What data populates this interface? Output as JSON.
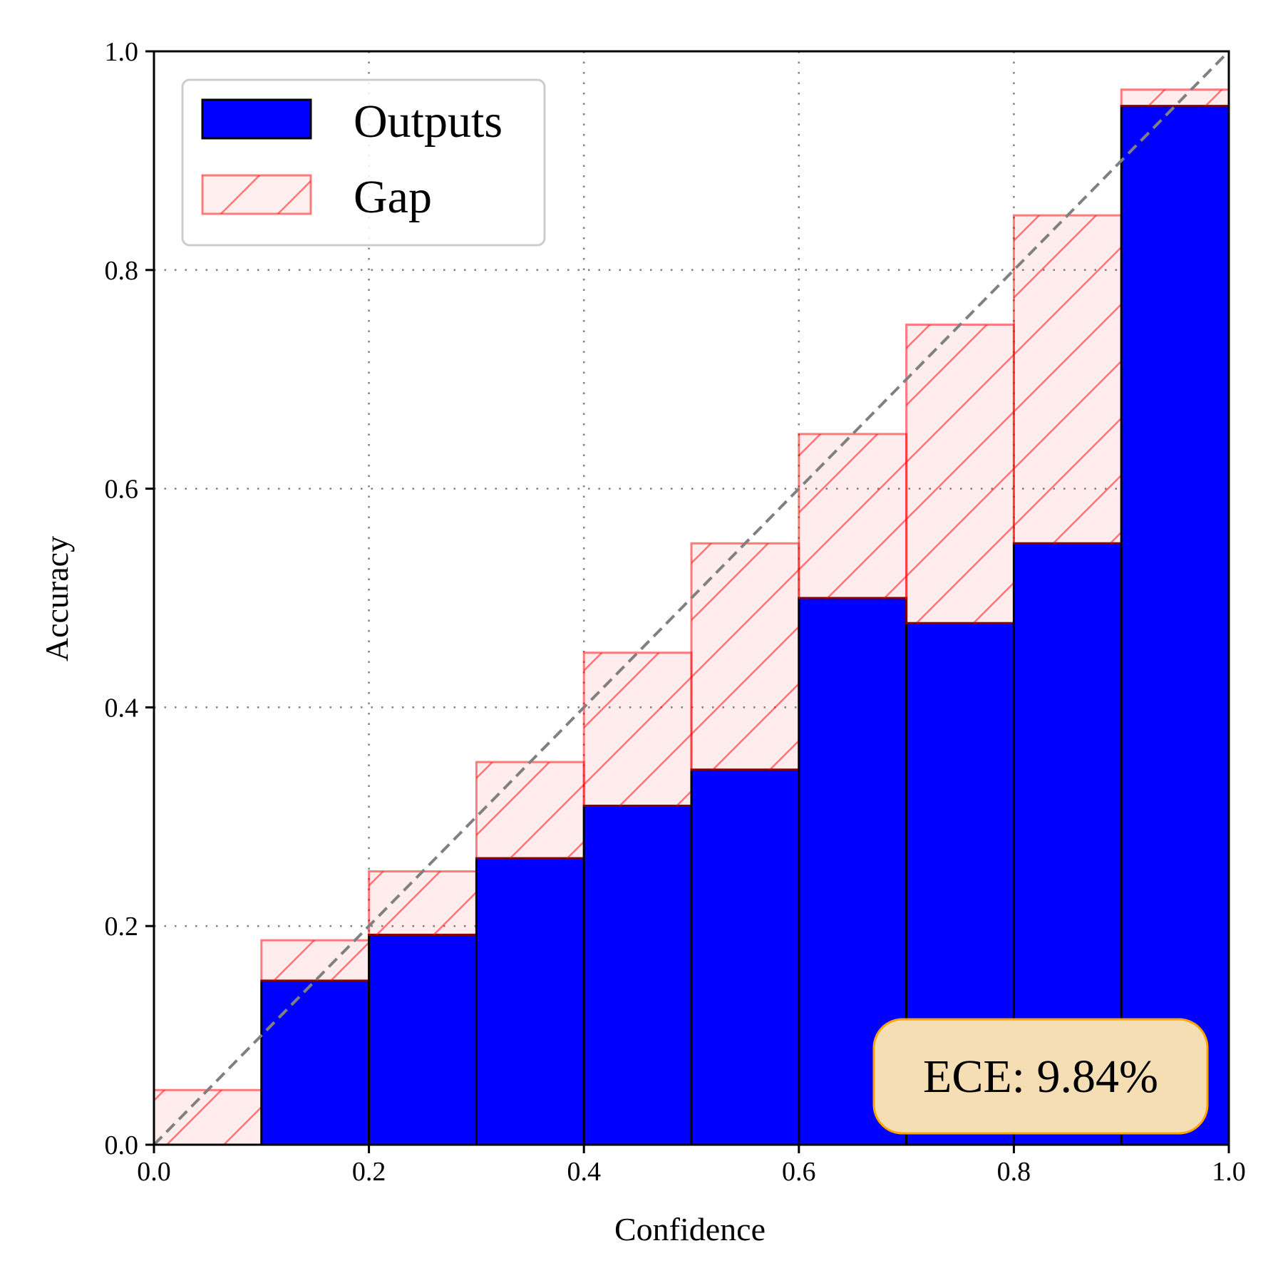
{
  "chart_data": {
    "type": "bar",
    "xlabel": "Confidence",
    "ylabel": "Accuracy",
    "xlim": [
      0,
      1
    ],
    "ylim": [
      0,
      1
    ],
    "xticks": [
      "0.0",
      "0.2",
      "0.4",
      "0.6",
      "0.8",
      "1.0"
    ],
    "yticks": [
      "0.0",
      "0.2",
      "0.4",
      "0.6",
      "0.8",
      "1.0"
    ],
    "grid": true,
    "legend_position": "top-left",
    "bin_edges": [
      0.0,
      0.1,
      0.2,
      0.3,
      0.4,
      0.5,
      0.6,
      0.7,
      0.8,
      0.9,
      1.0
    ],
    "series": [
      {
        "name": "Outputs",
        "color": "#0000ff",
        "values": [
          0.0,
          0.15,
          0.192,
          0.262,
          0.31,
          0.343,
          0.5,
          0.477,
          0.55,
          0.95
        ]
      },
      {
        "name": "Gap",
        "color": "#ff0000",
        "values": [
          0.05,
          0.187,
          0.25,
          0.35,
          0.45,
          0.55,
          0.65,
          0.75,
          0.85,
          0.965
        ]
      }
    ],
    "diagonal": {
      "from": [
        0,
        0
      ],
      "to": [
        1,
        1
      ],
      "style": "dashed",
      "color": "#808080"
    },
    "annotation": "ECE: 9.84%"
  }
}
